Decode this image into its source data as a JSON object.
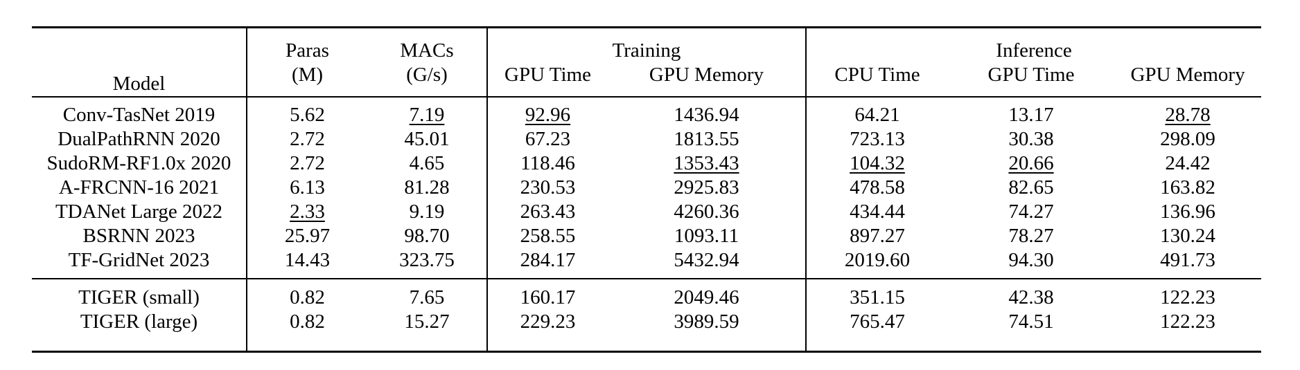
{
  "table": {
    "header": {
      "model": "Model",
      "paras_line1": "Paras",
      "paras_line2": "(M)",
      "macs_line1": "MACs",
      "macs_line2": "(G/s)",
      "training_group": "Training",
      "inference_group": "Inference",
      "training_cols": [
        "GPU Time",
        "GPU Memory"
      ],
      "inference_cols": [
        "CPU Time",
        "GPU Time",
        "GPU Memory"
      ]
    },
    "column_keys": [
      "paras",
      "macs",
      "train-gpu-time",
      "train-gpu-memory",
      "cpu-time",
      "inf-gpu-time",
      "inf-gpu-memory"
    ],
    "groups": [
      {
        "name": "baselines",
        "rows": [
          {
            "model": "Conv-TasNet 2019",
            "cells": [
              {
                "v": "5.62"
              },
              {
                "v": "7.19",
                "f": "underline"
              },
              {
                "v": "92.96",
                "f": "underline"
              },
              {
                "v": "1436.94"
              },
              {
                "v": "64.21",
                "f": "bold"
              },
              {
                "v": "13.17",
                "f": "bold"
              },
              {
                "v": "28.78",
                "f": "underline"
              }
            ]
          },
          {
            "model": "DualPathRNN 2020",
            "cells": [
              {
                "v": "2.72"
              },
              {
                "v": "45.01"
              },
              {
                "v": "67.23",
                "f": "bold"
              },
              {
                "v": "1813.55"
              },
              {
                "v": "723.13"
              },
              {
                "v": "30.38"
              },
              {
                "v": "298.09"
              }
            ]
          },
          {
            "model": "SudoRM-RF1.0x 2020",
            "cells": [
              {
                "v": "2.72"
              },
              {
                "v": "4.65",
                "f": "bold"
              },
              {
                "v": "118.46"
              },
              {
                "v": "1353.43",
                "f": "underline"
              },
              {
                "v": "104.32",
                "f": "underline"
              },
              {
                "v": "20.66",
                "f": "underline"
              },
              {
                "v": "24.42",
                "f": "bold"
              }
            ]
          },
          {
            "model": "A-FRCNN-16 2021",
            "cells": [
              {
                "v": "6.13"
              },
              {
                "v": "81.28"
              },
              {
                "v": "230.53"
              },
              {
                "v": "2925.83"
              },
              {
                "v": "478.58"
              },
              {
                "v": "82.65"
              },
              {
                "v": "163.82"
              }
            ]
          },
          {
            "model": "TDANet Large 2022",
            "cells": [
              {
                "v": "2.33",
                "f": "underline"
              },
              {
                "v": "9.19"
              },
              {
                "v": "263.43"
              },
              {
                "v": "4260.36"
              },
              {
                "v": "434.44"
              },
              {
                "v": "74.27"
              },
              {
                "v": "136.96"
              }
            ]
          },
          {
            "model": "BSRNN 2023",
            "cells": [
              {
                "v": "25.97"
              },
              {
                "v": "98.70"
              },
              {
                "v": "258.55"
              },
              {
                "v": "1093.11",
                "f": "bold"
              },
              {
                "v": "897.27"
              },
              {
                "v": "78.27"
              },
              {
                "v": "130.24"
              }
            ]
          },
          {
            "model": "TF-GridNet 2023",
            "cells": [
              {
                "v": "14.43"
              },
              {
                "v": "323.75"
              },
              {
                "v": "284.17"
              },
              {
                "v": "5432.94"
              },
              {
                "v": "2019.60"
              },
              {
                "v": "94.30"
              },
              {
                "v": "491.73"
              }
            ]
          }
        ]
      },
      {
        "name": "tiger",
        "rows": [
          {
            "model": "TIGER (small)",
            "cells": [
              {
                "v": "0.82",
                "f": "bold"
              },
              {
                "v": "7.65"
              },
              {
                "v": "160.17"
              },
              {
                "v": "2049.46"
              },
              {
                "v": "351.15"
              },
              {
                "v": "42.38"
              },
              {
                "v": "122.23"
              }
            ]
          },
          {
            "model": "TIGER (large)",
            "cells": [
              {
                "v": "0.82",
                "f": "bold"
              },
              {
                "v": "15.27"
              },
              {
                "v": "229.23"
              },
              {
                "v": "3989.59"
              },
              {
                "v": "765.47"
              },
              {
                "v": "74.51"
              },
              {
                "v": "122.23"
              }
            ]
          }
        ]
      }
    ]
  },
  "styles": {
    "text_color": "#000000",
    "background": "#ffffff",
    "rule_color": "#000000"
  }
}
